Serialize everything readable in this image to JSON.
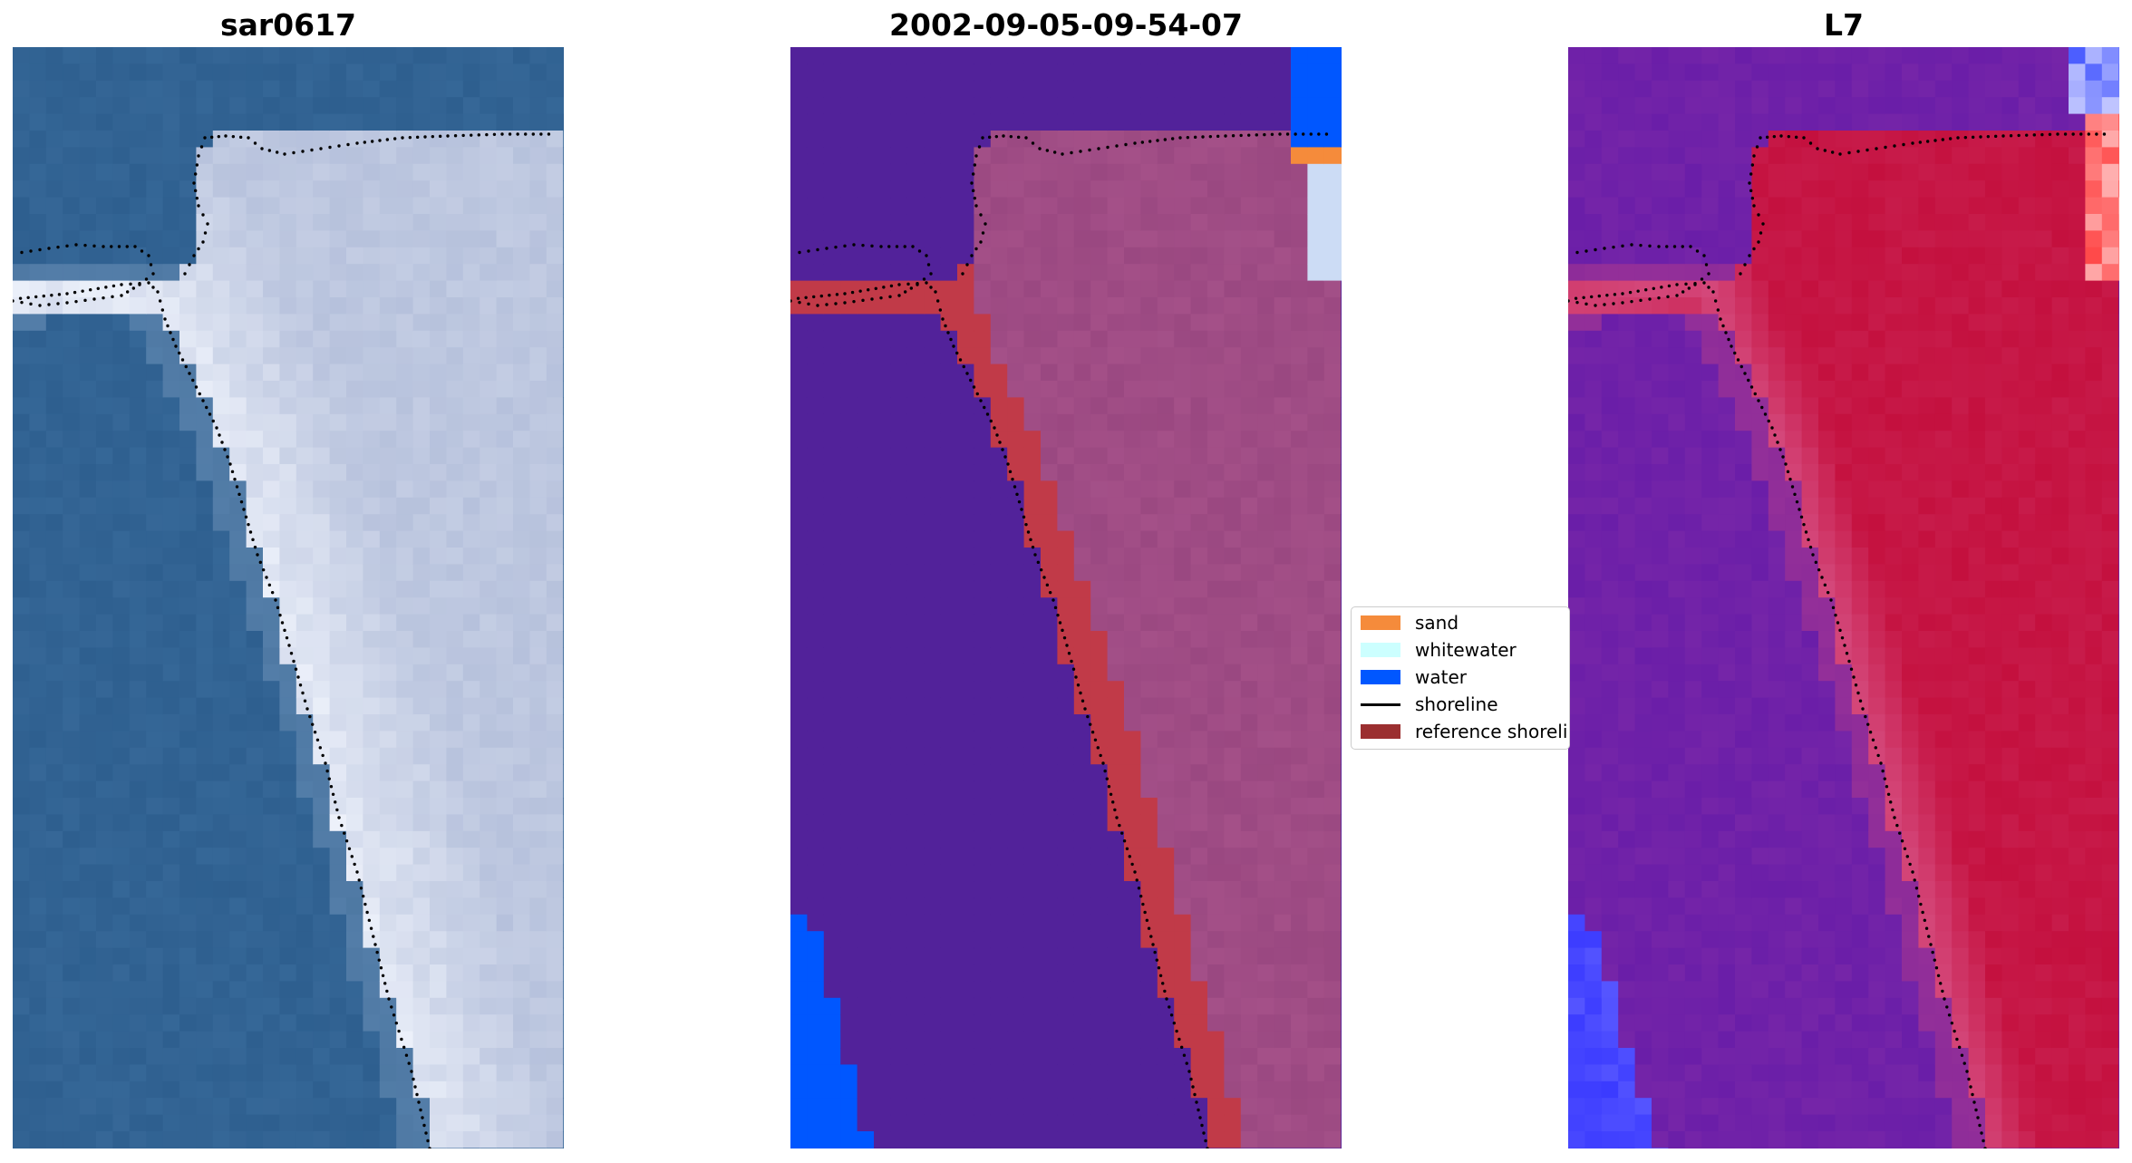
{
  "panels": [
    {
      "title": "sar0617",
      "kind": "rgb-image"
    },
    {
      "title": "2002-09-05-09-54-07",
      "kind": "classification"
    },
    {
      "title": "L7",
      "kind": "mndwi-image"
    }
  ],
  "legend": {
    "items": [
      {
        "label": "sand",
        "color": "#f58b3b",
        "type": "patch"
      },
      {
        "label": "whitewater",
        "color": "#ccffff",
        "type": "patch"
      },
      {
        "label": "water",
        "color": "#0057ff",
        "type": "patch"
      },
      {
        "label": "shoreline",
        "color": "#000000",
        "type": "line"
      },
      {
        "label": "reference shoreline",
        "color": "#9b2f30",
        "type": "patch"
      }
    ]
  },
  "colors": {
    "sea_rgb": "#2e5f8f",
    "land_rgb": "#c9d3ec",
    "class_bg": "#52229a",
    "class_land": "#a45088",
    "class_ref": "#c13a48",
    "mndwi_water": "#6a1ea8",
    "mndwi_land": "#c4103e"
  }
}
